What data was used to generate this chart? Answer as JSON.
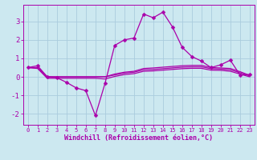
{
  "background_color": "#cce8f0",
  "grid_color": "#aaccdd",
  "line_color": "#aa00aa",
  "xlabel": "Windchill (Refroidissement éolien,°C)",
  "xlim": [
    -0.5,
    23.5
  ],
  "ylim": [
    -2.6,
    3.9
  ],
  "yticks": [
    -2,
    -1,
    0,
    1,
    2,
    3
  ],
  "xticks": [
    0,
    1,
    2,
    3,
    4,
    5,
    6,
    7,
    8,
    9,
    10,
    11,
    12,
    13,
    14,
    15,
    16,
    17,
    18,
    19,
    20,
    21,
    22,
    23
  ],
  "series_main": {
    "x": [
      0,
      1,
      2,
      3,
      4,
      5,
      6,
      7,
      8,
      9,
      10,
      11,
      12,
      13,
      14,
      15,
      16,
      17,
      18,
      19,
      20,
      21,
      22,
      23
    ],
    "y": [
      0.5,
      0.6,
      0.0,
      -0.05,
      -0.3,
      -0.6,
      -0.75,
      -2.1,
      -0.35,
      1.7,
      2.0,
      2.1,
      3.4,
      3.2,
      3.5,
      2.7,
      1.6,
      1.1,
      0.85,
      0.5,
      0.65,
      0.9,
      0.1,
      0.12
    ]
  },
  "series_flat": [
    [
      0.5,
      0.5,
      0.0,
      0.0,
      0.0,
      0.0,
      0.0,
      0.0,
      0.0,
      0.15,
      0.25,
      0.3,
      0.45,
      0.48,
      0.52,
      0.56,
      0.6,
      0.62,
      0.62,
      0.5,
      0.48,
      0.45,
      0.28,
      0.08
    ],
    [
      0.5,
      0.48,
      0.0,
      0.0,
      0.0,
      0.0,
      0.0,
      0.0,
      0.0,
      0.1,
      0.2,
      0.25,
      0.38,
      0.4,
      0.44,
      0.48,
      0.52,
      0.54,
      0.54,
      0.44,
      0.42,
      0.38,
      0.22,
      0.05
    ],
    [
      0.5,
      0.45,
      -0.08,
      -0.08,
      -0.08,
      -0.08,
      -0.08,
      -0.08,
      -0.12,
      0.02,
      0.12,
      0.17,
      0.3,
      0.32,
      0.36,
      0.4,
      0.44,
      0.46,
      0.46,
      0.36,
      0.35,
      0.3,
      0.15,
      0.0
    ]
  ]
}
